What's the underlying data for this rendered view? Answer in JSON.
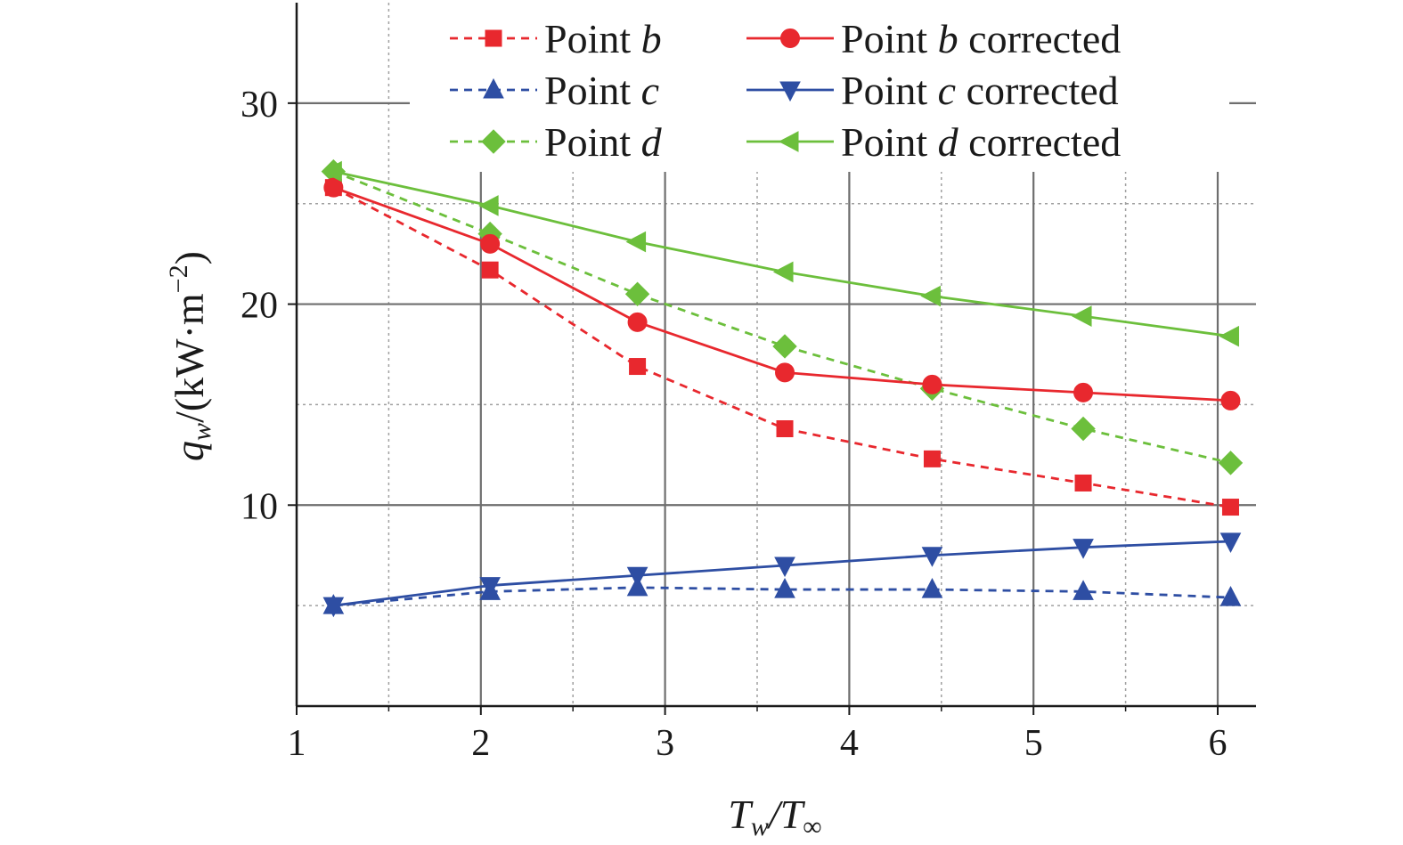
{
  "chart_data": {
    "type": "line",
    "x": [
      1.2,
      2.05,
      2.85,
      3.65,
      4.45,
      5.27,
      6.07
    ],
    "xlim": [
      1,
      6.2
    ],
    "ylim": [
      0,
      35
    ],
    "x_ticks": [
      "1",
      "2",
      "3",
      "4",
      "5",
      "6"
    ],
    "y_ticks": [
      "10",
      "20",
      "30"
    ],
    "xlabel": {
      "a": "T",
      "a_sub": "w",
      "b": "/T",
      "b_sub": "∞"
    },
    "ylabel": {
      "a": "q",
      "a_sub": "w",
      "b": "/(kW·m",
      "b_sup": "−2",
      "c": ")"
    },
    "grid": true,
    "legend_position": "top",
    "series": [
      {
        "name": "Point b",
        "legend": {
          "pre": "Point ",
          "it": "b",
          "post": ""
        },
        "color": "#e8282e",
        "dash": true,
        "marker": "square",
        "values": [
          25.8,
          21.7,
          16.9,
          13.8,
          12.3,
          11.1,
          9.9
        ]
      },
      {
        "name": "Point c",
        "legend": {
          "pre": "Point ",
          "it": "c",
          "post": ""
        },
        "color": "#2e4ea3",
        "dash": true,
        "marker": "triangle-up",
        "values": [
          5.0,
          5.7,
          5.9,
          5.8,
          5.8,
          5.7,
          5.4
        ]
      },
      {
        "name": "Point d",
        "legend": {
          "pre": "Point ",
          "it": "d",
          "post": ""
        },
        "color": "#6cbf3c",
        "dash": true,
        "marker": "diamond",
        "values": [
          26.6,
          23.5,
          20.5,
          17.9,
          15.8,
          13.8,
          12.1
        ]
      },
      {
        "name": "Point b corrected",
        "legend": {
          "pre": "Point ",
          "it": "b",
          "post": " corrected"
        },
        "color": "#e8282e",
        "dash": false,
        "marker": "circle",
        "values": [
          25.8,
          23.0,
          19.1,
          16.6,
          16.0,
          15.6,
          15.2
        ]
      },
      {
        "name": "Point c corrected",
        "legend": {
          "pre": "Point ",
          "it": "c",
          "post": " corrected"
        },
        "color": "#2e4ea3",
        "dash": false,
        "marker": "triangle-down",
        "values": [
          5.0,
          6.0,
          6.5,
          7.0,
          7.5,
          7.9,
          8.2
        ]
      },
      {
        "name": "Point d corrected",
        "legend": {
          "pre": "Point ",
          "it": "d",
          "post": " corrected"
        },
        "color": "#6cbf3c",
        "dash": false,
        "marker": "triangle-left",
        "values": [
          26.6,
          24.9,
          23.1,
          21.6,
          20.4,
          19.4,
          18.4
        ]
      }
    ]
  }
}
